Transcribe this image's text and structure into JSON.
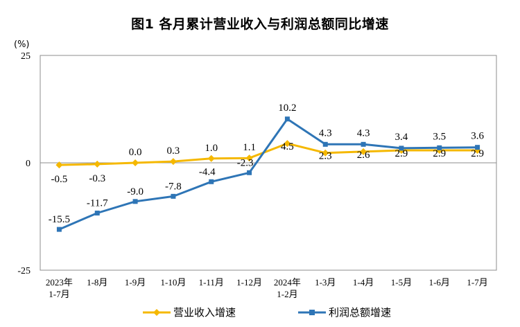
{
  "chart_data": {
    "type": "line",
    "title": "图1  各月累计营业收入与利润总额同比增速",
    "unit": "(%)",
    "categories": [
      "2023年\n1-7月",
      "1-8月",
      "1-9月",
      "1-10月",
      "1-11月",
      "1-12月",
      "2024年\n1-2月",
      "1-3月",
      "1-4月",
      "1-5月",
      "1-6月",
      "1-7月"
    ],
    "ylim": [
      -25,
      25
    ],
    "yticks": [
      -25,
      0,
      25
    ],
    "grid": false,
    "legend_position": "bottom",
    "series": [
      {
        "name": "营业收入增速",
        "color": "#F5B800",
        "marker": "diamond",
        "values": [
          -0.5,
          -0.3,
          0.0,
          0.3,
          1.0,
          1.1,
          4.5,
          2.3,
          2.6,
          2.9,
          2.9,
          2.9
        ],
        "labels": [
          "-0.5",
          "-0.3",
          "0.0",
          "0.3",
          "1.0",
          "1.1",
          "4.5",
          "2.3",
          "2.6",
          "2.9",
          "2.9",
          "2.9"
        ]
      },
      {
        "name": "利润总额增速",
        "color": "#2E75B6",
        "marker": "square",
        "values": [
          -15.5,
          -11.7,
          -9.0,
          -7.8,
          -4.4,
          -2.3,
          10.2,
          4.3,
          4.3,
          3.4,
          3.5,
          3.6
        ],
        "labels": [
          "-15.5",
          "-11.7",
          "-9.0",
          "-7.8",
          "-4.4",
          "-2.3",
          "10.2",
          "4.3",
          "4.3",
          "3.4",
          "3.5",
          "3.6"
        ]
      }
    ]
  }
}
